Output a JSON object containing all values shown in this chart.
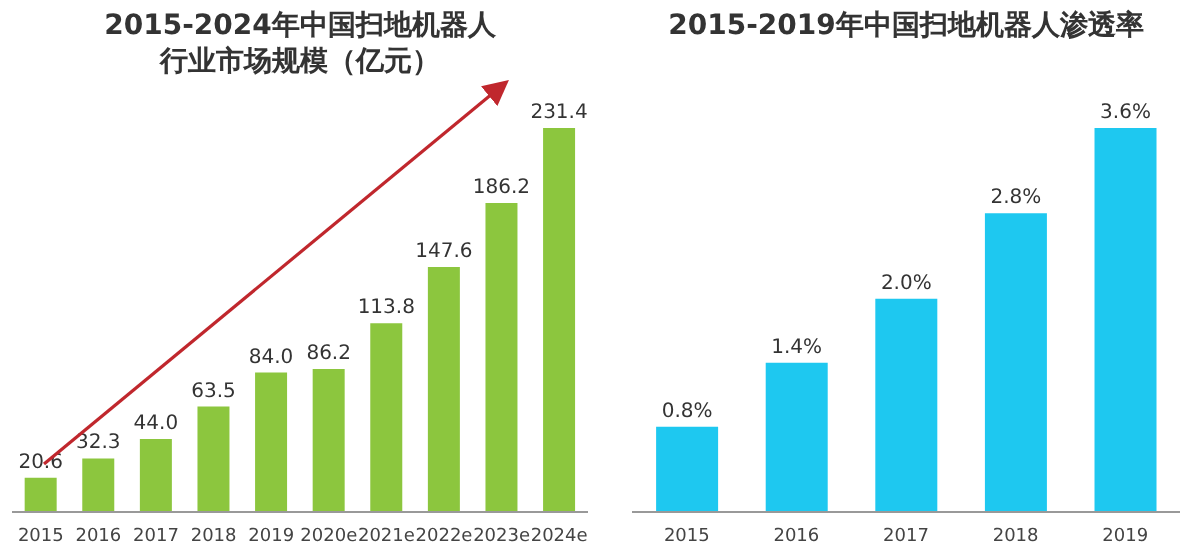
{
  "chart_data": [
    {
      "type": "bar",
      "title": "2015-2024年中国扫地机器人行业市场规模（亿元）",
      "categories": [
        "2015",
        "2016",
        "2017",
        "2018",
        "2019",
        "2020e",
        "2021e",
        "2022e",
        "2023e",
        "2024e"
      ],
      "values": [
        20.6,
        32.3,
        44.0,
        63.5,
        84.0,
        86.2,
        113.8,
        147.6,
        186.2,
        231.4
      ],
      "value_labels": [
        "20.6",
        "32.3",
        "44.0",
        "63.5",
        "84.0",
        "86.2",
        "113.8",
        "147.6",
        "186.2",
        "231.4"
      ],
      "color": "#8cc63e"
    },
    {
      "type": "bar",
      "title": "2015-2019年中国扫地机器人渗透率",
      "categories": [
        "2015",
        "2016",
        "2017",
        "2018",
        "2019"
      ],
      "values": [
        0.8,
        1.4,
        2.0,
        2.8,
        3.6
      ],
      "value_labels": [
        "0.8%",
        "1.4%",
        "2.0%",
        "2.8%",
        "3.6%"
      ],
      "color": "#1ec8f0"
    }
  ]
}
